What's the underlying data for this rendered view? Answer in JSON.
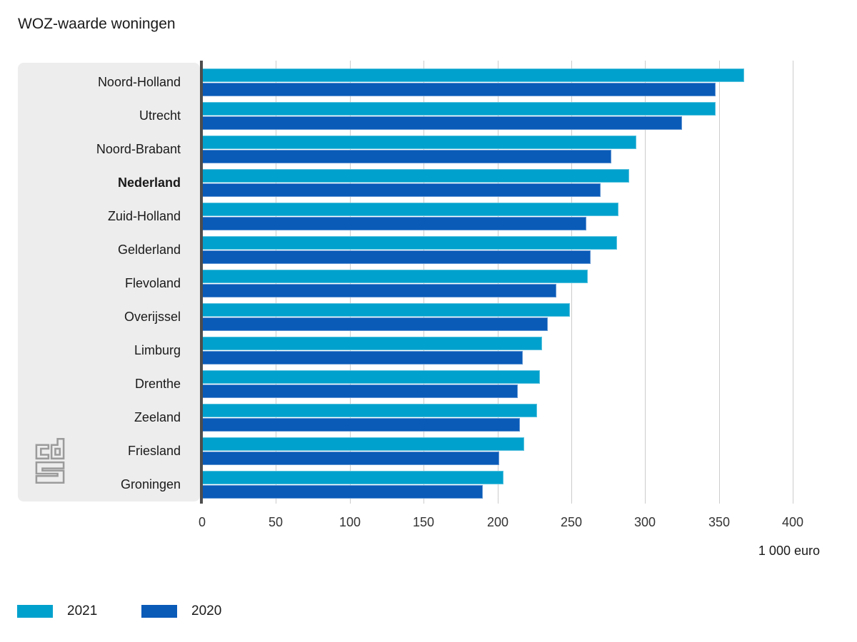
{
  "title": "WOZ-waarde woningen",
  "chart_data": {
    "type": "bar",
    "orientation": "horizontal",
    "title": "WOZ-waarde woningen",
    "unit_label": "1 000 euro",
    "categories": [
      "Noord-Holland",
      "Utrecht",
      "Noord-Brabant",
      "Nederland",
      "Zuid-Holland",
      "Gelderland",
      "Flevoland",
      "Overijssel",
      "Limburg",
      "Drenthe",
      "Zeeland",
      "Friesland",
      "Groningen"
    ],
    "emphasized_category": "Nederland",
    "series": [
      {
        "name": "2021",
        "color": "#00a1cd",
        "values": [
          367,
          348,
          294,
          289,
          282,
          281,
          261,
          249,
          230,
          229,
          227,
          218,
          204
        ]
      },
      {
        "name": "2020",
        "color": "#0a5bb8",
        "values": [
          348,
          325,
          277,
          270,
          260,
          263,
          240,
          234,
          217,
          214,
          215,
          201,
          190
        ]
      }
    ],
    "xlim": [
      0,
      400
    ],
    "tick_interval": 50,
    "tick_labels": [
      "0",
      "50",
      "100",
      "150",
      "200",
      "250",
      "300",
      "350",
      "400"
    ],
    "grid": true,
    "legend_position": "bottom-left"
  },
  "legend": {
    "items": [
      {
        "label": "2021",
        "color": "#00a1cd"
      },
      {
        "label": "2020",
        "color": "#0a5bb8"
      }
    ]
  },
  "logo": {
    "name": "cbs-logo",
    "color": "#9b9b9b"
  },
  "colors": {
    "series_2021": "#00a1cd",
    "series_2020": "#0a5bb8",
    "label_panel_bg": "#ededed",
    "gridline": "#cccccc",
    "zero_axis": "#4d4d4d",
    "text": "#1a1a1a"
  }
}
